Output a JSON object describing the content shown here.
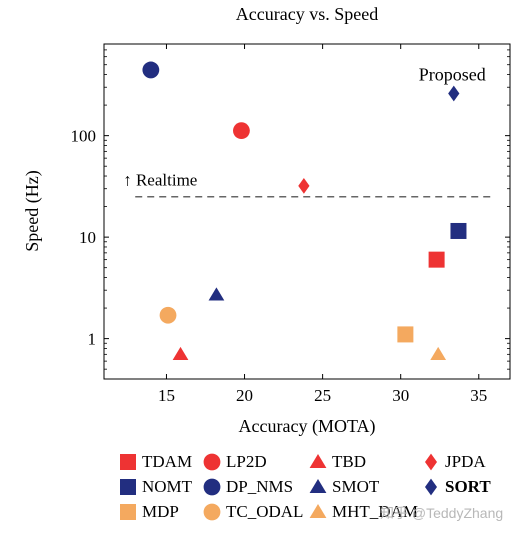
{
  "chart_data": {
    "type": "scatter",
    "title": "Accuracy vs. Speed",
    "xlabel": "Accuracy (MOTA)",
    "ylabel": "Speed (Hz)",
    "xlim": [
      11,
      37
    ],
    "ylim": [
      0.4,
      800
    ],
    "yscale": "log",
    "xticks": [
      15,
      20,
      25,
      30,
      35
    ],
    "yticks": [
      {
        "value": 1,
        "label": "1"
      },
      {
        "value": 10,
        "label": "10"
      },
      {
        "value": 100,
        "label": "100"
      }
    ],
    "realtime_line": {
      "y": 25,
      "x_range": [
        13,
        36
      ],
      "label": "↑ Realtime"
    },
    "annotation": {
      "text": "Proposed",
      "x": 33.3,
      "y": 260
    },
    "legend_placement": "bottom",
    "series": [
      {
        "name": "TDAM",
        "x": 32.3,
        "y": 6,
        "marker": "square",
        "color": "#ee3333"
      },
      {
        "name": "LP2D",
        "x": 19.8,
        "y": 112,
        "marker": "circle",
        "color": "#ee3333"
      },
      {
        "name": "TBD",
        "x": 15.9,
        "y": 0.7,
        "marker": "triangle",
        "color": "#ee3333"
      },
      {
        "name": "JPDA",
        "x": 23.8,
        "y": 32,
        "marker": "diamond",
        "color": "#ee3333"
      },
      {
        "name": "NOMT",
        "x": 33.7,
        "y": 11.5,
        "marker": "square",
        "color": "#222e80"
      },
      {
        "name": "DP_NMS",
        "x": 14.0,
        "y": 444,
        "marker": "circle",
        "color": "#222e80"
      },
      {
        "name": "SMOT",
        "x": 18.2,
        "y": 2.7,
        "marker": "triangle",
        "color": "#222e80"
      },
      {
        "name": "SORT",
        "x": 33.4,
        "y": 260,
        "marker": "diamond",
        "color": "#222e80",
        "bold": true
      },
      {
        "name": "MDP",
        "x": 30.3,
        "y": 1.1,
        "marker": "square",
        "color": "#f4a95f"
      },
      {
        "name": "TC_ODAL",
        "x": 15.1,
        "y": 1.7,
        "marker": "circle",
        "color": "#f4a95f"
      },
      {
        "name": "MHT_DAM",
        "x": 32.4,
        "y": 0.7,
        "marker": "triangle",
        "color": "#f4a95f"
      }
    ]
  },
  "legend": {
    "items": [
      {
        "label": "TDAM"
      },
      {
        "label": "LP2D"
      },
      {
        "label": "TBD"
      },
      {
        "label": "JPDA"
      },
      {
        "label": "NOMT"
      },
      {
        "label": "DP_NMS"
      },
      {
        "label": "SMOT"
      },
      {
        "label": "SORT"
      },
      {
        "label": "MDP"
      },
      {
        "label": "TC_ODAL"
      },
      {
        "label": "MHT_DAM"
      }
    ]
  },
  "watermark": "知乎 @TeddyZhang"
}
